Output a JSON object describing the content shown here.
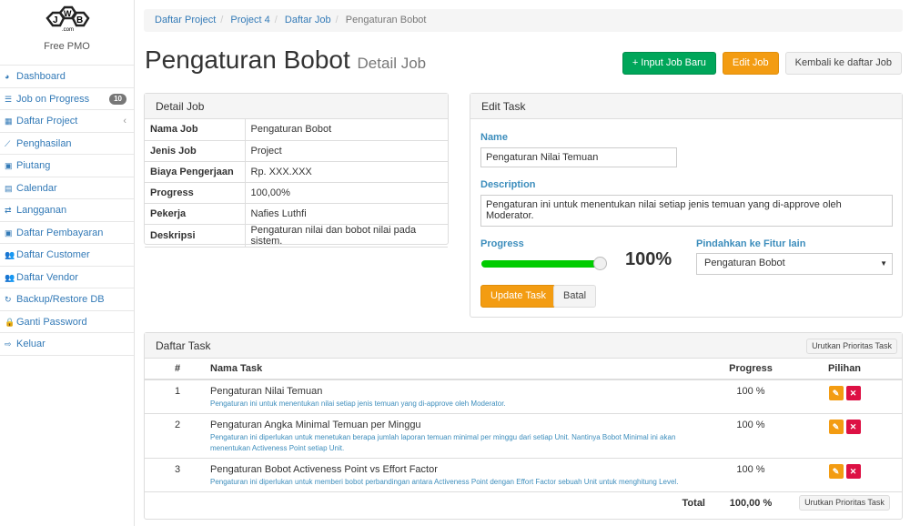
{
  "app": {
    "brand": "Free PMO",
    "logo_text": "JWB.com"
  },
  "sidebar": {
    "items": [
      {
        "label": "Dashboard",
        "icon": "dashboard-icon",
        "glyph": "◕"
      },
      {
        "label": "Job on Progress",
        "icon": "tasks-icon",
        "glyph": "☰",
        "badge": "10"
      },
      {
        "label": "Daftar Project",
        "icon": "table-icon",
        "glyph": "▦",
        "chevron": "‹"
      },
      {
        "label": "Penghasilan",
        "icon": "line-chart-icon",
        "glyph": "⟋"
      },
      {
        "label": "Piutang",
        "icon": "money-icon",
        "glyph": "▣"
      },
      {
        "label": "Calendar",
        "icon": "calendar-icon",
        "glyph": "▤"
      },
      {
        "label": "Langganan",
        "icon": "retweet-icon",
        "glyph": "⇄"
      },
      {
        "label": "Daftar Pembayaran",
        "icon": "money-icon",
        "glyph": "▣"
      },
      {
        "label": "Daftar Customer",
        "icon": "users-icon",
        "glyph": "👥"
      },
      {
        "label": "Daftar Vendor",
        "icon": "users-icon",
        "glyph": "👥"
      },
      {
        "label": "Backup/Restore DB",
        "icon": "refresh-icon",
        "glyph": "↻"
      },
      {
        "label": "Ganti Password",
        "icon": "lock-icon",
        "glyph": "🔒"
      },
      {
        "label": "Keluar",
        "icon": "sign-out-icon",
        "glyph": "⇨"
      }
    ]
  },
  "breadcrumb": [
    "Daftar Project",
    "Project 4",
    "Daftar Job",
    "Pengaturan Bobot"
  ],
  "header": {
    "title": "Pengaturan Bobot",
    "subtitle": "Detail Job",
    "buttons": {
      "new": "+ Input Job Baru",
      "edit": "Edit Job",
      "back": "Kembali ke daftar Job"
    }
  },
  "detail": {
    "title": "Detail Job",
    "rows": [
      {
        "k": "Nama Job",
        "v": "Pengaturan Bobot"
      },
      {
        "k": "Jenis Job",
        "v": "Project"
      },
      {
        "k": "Biaya Pengerjaan",
        "v": "Rp. XXX.XXX"
      },
      {
        "k": "Progress",
        "v": "100,00%"
      },
      {
        "k": "Pekerja",
        "v": "Nafies Luthfi"
      },
      {
        "k": "Deskripsi",
        "v": "Pengaturan nilai dan bobot nilai pada sistem."
      }
    ]
  },
  "edit": {
    "title": "Edit Task",
    "name_label": "Name",
    "name_value": "Pengaturan Nilai Temuan",
    "desc_label": "Description",
    "desc_value": "Pengaturan ini untuk menentukan nilai setiap jenis temuan yang di-approve oleh Moderator.",
    "progress_label": "Progress",
    "progress_value": 100,
    "progress_text": "100%",
    "move_label": "Pindahkan ke Fitur lain",
    "move_selected": "Pengaturan Bobot",
    "update": "Update Task",
    "cancel": "Batal"
  },
  "tasks": {
    "title": "Daftar Task",
    "sort_button": "Urutkan Prioritas Task",
    "headers": [
      "#",
      "Nama Task",
      "Progress",
      "Pilihan"
    ],
    "rows": [
      {
        "no": "1",
        "name": "Pengaturan Nilai Temuan",
        "desc": "Pengaturan ini untuk menentukan nilai setiap jenis temuan yang di-approve oleh Moderator.",
        "progress": "100 %"
      },
      {
        "no": "2",
        "name": "Pengaturan Angka Minimal Temuan per Minggu",
        "desc": "Pengaturan ini diperlukan untuk menetukan berapa jumlah laporan temuan minimal per minggu dari setiap Unit. Nantinya Bobot Minimal ini akan menentukan Activeness Point setiap Unit.",
        "progress": "100 %"
      },
      {
        "no": "3",
        "name": "Pengaturan Bobot Activeness Point vs Effort Factor",
        "desc": "Pengaturan ini diperlukan untuk memberi bobot perbandingan antara Activeness Point dengan Effort Factor sebuah Unit untuk menghitung Level.",
        "progress": "100 %"
      }
    ],
    "total_label": "Total",
    "total_value": "100,00 %"
  },
  "colors": {
    "accent": "#3c8dbc",
    "green": "#00a65a",
    "orange": "#f39c12",
    "danger": "#dd1144"
  }
}
